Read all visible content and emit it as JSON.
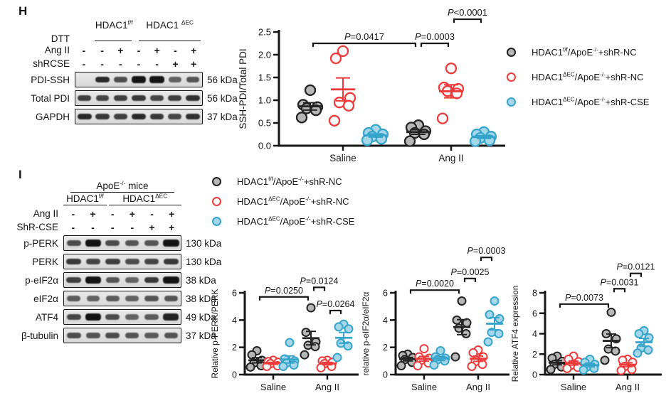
{
  "colors": {
    "black": {
      "stroke": "#232323",
      "fill": "#b7b7b7"
    },
    "red": {
      "stroke": "#ee3a3b",
      "fill": "#ffffff"
    },
    "blue": {
      "stroke": "#35a5cb",
      "fill": "#a5d7e9"
    }
  },
  "panel_h": {
    "label": "H",
    "blot": {
      "group_headers": [
        {
          "segments": [
            {
              "t": "HDAC1"
            },
            {
              "t": "f/f",
              "sup": true
            }
          ],
          "span": [
            1,
            3.3
          ]
        },
        {
          "segments": [
            {
              "t": "HDAC1 "
            },
            {
              "t": "ΔEC",
              "sup": true
            }
          ],
          "span": [
            3.4,
            7
          ]
        }
      ],
      "dtt": {
        "label": "DTT",
        "lines": [
          [
            1.1,
            3.1
          ],
          [
            3.5,
            6.9
          ]
        ]
      },
      "treatments": [
        {
          "label": "Ang II",
          "values": [
            "-",
            "-",
            "+",
            "-",
            "+",
            "-",
            "+"
          ]
        },
        {
          "label": "shRCSE",
          "values": [
            "-",
            "-",
            "-",
            "-",
            "-",
            "+",
            "+"
          ]
        }
      ],
      "bands": [
        {
          "label": "PDI-SSH",
          "kda": "56 kDa",
          "intensities": [
            0,
            0.85,
            0.6,
            1,
            1,
            0.45,
            0.55
          ]
        },
        {
          "label": "Total PDI",
          "kda": "56 kDa",
          "intensities": [
            0.7,
            0.65,
            0.7,
            0.75,
            0.65,
            0.7,
            0.8
          ]
        },
        {
          "label": "GAPDH",
          "kda": "37 kDa",
          "intensities": [
            0.85,
            0.75,
            0.7,
            0.85,
            0.75,
            0.65,
            0.8
          ]
        }
      ]
    },
    "legend": [
      {
        "color": "black",
        "segments": [
          {
            "t": "HDAC1"
          },
          {
            "t": "f/f",
            "sup": true
          },
          {
            "t": "/ApoE"
          },
          {
            "t": "-/-",
            "sup": true
          },
          {
            "t": "+shR-NC"
          }
        ]
      },
      {
        "color": "red",
        "segments": [
          {
            "t": "HDAC1"
          },
          {
            "t": "ΔEC",
            "sup": true
          },
          {
            "t": "/ApoE"
          },
          {
            "t": "-/-",
            "sup": true
          },
          {
            "t": "+shR-NC"
          }
        ]
      },
      {
        "color": "blue",
        "segments": [
          {
            "t": "HDAC1"
          },
          {
            "t": "ΔEC",
            "sup": true
          },
          {
            "t": "/ApoE"
          },
          {
            "t": "-/-",
            "sup": true
          },
          {
            "t": "+shR-CSE"
          }
        ]
      }
    ]
  },
  "panel_i": {
    "label": "I",
    "blot": {
      "top_header": {
        "segments": [
          {
            "t": "ApoE"
          },
          {
            "t": "-/-",
            "sup": true
          },
          {
            "t": " mice"
          }
        ],
        "span": [
          0.35,
          5.65
        ],
        "underline": true
      },
      "group_headers": [
        {
          "segments": [
            {
              "t": "HDAC1"
            },
            {
              "t": "f/f",
              "sup": true
            }
          ],
          "span": [
            0,
            2.2
          ],
          "underline": true
        },
        {
          "segments": [
            {
              "t": "HDAC1"
            },
            {
              "t": "ΔEC",
              "sup": true
            }
          ],
          "span": [
            2.3,
            6
          ],
          "underline": true
        }
      ],
      "treatments": [
        {
          "label": "Ang II",
          "values": [
            "-",
            "+",
            "-",
            "+",
            "-",
            "+"
          ]
        },
        {
          "label": "ShR-CSE",
          "values": [
            "-",
            "-",
            "-",
            "-",
            "+",
            "+"
          ]
        }
      ],
      "bands": [
        {
          "label": "p-PERK",
          "kda": "130 kDa",
          "intensities": [
            0.6,
            1,
            0.6,
            0.55,
            0.55,
            1
          ]
        },
        {
          "label": "PERK",
          "kda": "130 kDa",
          "intensities": [
            0.75,
            0.65,
            0.7,
            0.6,
            0.65,
            0.75
          ]
        },
        {
          "label": "p-eIF2α",
          "kda": "38 kDa",
          "intensities": [
            0.7,
            1,
            0.55,
            0.45,
            0.75,
            1
          ]
        },
        {
          "label": "eIF2α",
          "kda": "38 kDa",
          "intensities": [
            0.5,
            0.45,
            0.5,
            0.45,
            0.55,
            0.55
          ]
        },
        {
          "label": "ATF4",
          "kda": "49 kDa",
          "intensities": [
            0.65,
            1,
            0.6,
            0.45,
            0.5,
            0.9
          ]
        },
        {
          "label": "β-tubulin",
          "kda": "37 kDa",
          "intensities": [
            0.6,
            0.55,
            0.6,
            0.55,
            0.5,
            0.55
          ]
        }
      ]
    },
    "legend": [
      {
        "color": "black",
        "segments": [
          {
            "t": "HDAC1"
          },
          {
            "t": "f/f",
            "sup": true
          },
          {
            "t": "/ApoE"
          },
          {
            "t": "-/-",
            "sup": true
          },
          {
            "t": "+shR-NC"
          }
        ]
      },
      {
        "color": "red",
        "segments": [
          {
            "t": "HDAC1"
          },
          {
            "t": "ΔEC",
            "sup": true
          },
          {
            "t": "/ApoE"
          },
          {
            "t": "-/-",
            "sup": true
          },
          {
            "t": "+shR-NC"
          }
        ]
      },
      {
        "color": "blue",
        "segments": [
          {
            "t": "HDAC1"
          },
          {
            "t": "ΔEC",
            "sup": true
          },
          {
            "t": "/ApoE"
          },
          {
            "t": "-/-",
            "sup": true
          },
          {
            "t": "+shR-CSE"
          }
        ]
      }
    ]
  },
  "chart_data": [
    {
      "id": "h",
      "type": "scatter",
      "ylabel": "SSH-PDI/Total PDI",
      "ylim": [
        0,
        2.5
      ],
      "yticks": [
        0,
        0.5,
        1,
        1.5,
        2,
        2.5
      ],
      "ytick_labels": [
        "0.0",
        "0.5",
        "1.0",
        "1.5",
        "2.0",
        "2.5"
      ],
      "groups": [
        "Saline",
        "Ang II"
      ],
      "series_keys": [
        "black",
        "red",
        "blue"
      ],
      "points": {
        "Saline": {
          "black": [
            1.22,
            0.9,
            0.85,
            0.82,
            0.78,
            0.62
          ],
          "red": [
            2.08,
            1.92,
            1.05,
            0.95,
            0.88,
            0.55
          ],
          "blue": [
            0.35,
            0.28,
            0.25,
            0.2,
            0.15,
            0.12
          ]
        },
        "Ang II": {
          "black": [
            0.45,
            0.4,
            0.32,
            0.28,
            0.25,
            0.1
          ],
          "red": [
            1.7,
            1.28,
            1.25,
            1.2,
            1.15,
            0.6
          ],
          "blue": [
            0.3,
            0.25,
            0.2,
            0.17,
            0.12,
            0.1
          ]
        }
      },
      "brackets": [
        {
          "g1": 0,
          "s1": 0,
          "g2": 1,
          "s2": 0,
          "y": 2.25,
          "label": "P=0.0417"
        },
        {
          "g1": 1,
          "s1": 0,
          "g2": 1,
          "s2": 1,
          "y": 2.25,
          "label": "P=0.0003"
        },
        {
          "g1": 1,
          "s1": 1,
          "g2": 1,
          "s2": 2,
          "y": 2.78,
          "label": "P<0.0001"
        }
      ]
    },
    {
      "id": "i1",
      "type": "scatter",
      "ylabel": "Relative p-PERK/PERK",
      "ylim": [
        0,
        6
      ],
      "yticks": [
        0,
        2,
        4,
        6
      ],
      "ytick_labels": [
        "0",
        "2",
        "4",
        "6"
      ],
      "groups": [
        "Saline",
        "Ang II"
      ],
      "series_keys": [
        "black",
        "red",
        "blue"
      ],
      "points": {
        "Saline": {
          "black": [
            1.75,
            1.45,
            1.05,
            0.85,
            0.65,
            0.55
          ],
          "red": [
            1.05,
            0.95,
            0.9,
            0.8,
            0.65,
            0.6
          ],
          "blue": [
            2.35,
            1.15,
            1.0,
            0.85,
            0.7,
            0.6
          ]
        },
        "Ang II": {
          "black": [
            4.9,
            3.1,
            2.4,
            2.15,
            2.05,
            1.45
          ],
          "red": [
            1.05,
            1.0,
            0.9,
            0.8,
            0.6,
            0.5
          ],
          "blue": [
            3.7,
            3.5,
            3.35,
            2.3,
            2.1,
            1.25
          ]
        }
      },
      "brackets": [
        {
          "g1": 0,
          "s1": 0,
          "g2": 1,
          "s2": 0,
          "y": 5.7,
          "label": "P=0.0250"
        },
        {
          "g1": 1,
          "s1": 0,
          "g2": 1,
          "s2": 1,
          "y": 6.4,
          "label": "P=0.0124"
        },
        {
          "g1": 1,
          "s1": 1,
          "g2": 1,
          "s2": 2,
          "y": 4.7,
          "label": "P=0.0264"
        }
      ]
    },
    {
      "id": "i2",
      "type": "scatter",
      "ylabel": "relative p-eIF2α/eIF2α",
      "ylim": [
        0,
        6
      ],
      "yticks": [
        0,
        2,
        4,
        6
      ],
      "ytick_labels": [
        "0",
        "2",
        "4",
        "6"
      ],
      "groups": [
        "Saline",
        "Ang II"
      ],
      "series_keys": [
        "black",
        "red",
        "blue"
      ],
      "points": {
        "Saline": {
          "black": [
            1.5,
            1.4,
            1.25,
            1.1,
            0.9,
            0.65
          ],
          "red": [
            1.9,
            1.3,
            1.2,
            1.05,
            0.85,
            0.65
          ],
          "blue": [
            1.75,
            1.3,
            1.2,
            1.1,
            1.0,
            0.7
          ]
        },
        "Ang II": {
          "black": [
            5.4,
            4.0,
            3.8,
            3.4,
            3.0,
            1.3
          ],
          "red": [
            1.8,
            1.6,
            1.3,
            0.95,
            0.75,
            0.6
          ],
          "blue": [
            5.4,
            4.4,
            4.1,
            3.1,
            3.0,
            2.4
          ]
        }
      },
      "brackets": [
        {
          "g1": 0,
          "s1": 0,
          "g2": 1,
          "s2": 0,
          "y": 6.2,
          "label": "P=0.0020"
        },
        {
          "g1": 1,
          "s1": 0,
          "g2": 1,
          "s2": 1,
          "y": 7.05,
          "label": "P=0.0025"
        },
        {
          "g1": 1,
          "s1": 1,
          "g2": 1,
          "s2": 2,
          "y": 8.6,
          "label": "P=0.0003"
        }
      ]
    },
    {
      "id": "i3",
      "type": "scatter",
      "ylabel": "Relative ATF4 expression",
      "ylim": [
        0,
        8
      ],
      "yticks": [
        0,
        2,
        4,
        6,
        8
      ],
      "ytick_labels": [
        "0",
        "2",
        "4",
        "6",
        "8"
      ],
      "groups": [
        "Saline",
        "Ang II"
      ],
      "series_keys": [
        "black",
        "red",
        "blue"
      ],
      "points": {
        "Saline": {
          "black": [
            1.8,
            1.6,
            1.3,
            1.0,
            0.75,
            0.5
          ],
          "red": [
            1.8,
            1.5,
            1.25,
            0.9,
            0.7,
            0.6
          ],
          "blue": [
            1.5,
            1.2,
            1.0,
            0.75,
            0.6,
            0.45
          ]
        },
        "Ang II": {
          "black": [
            6.1,
            4.0,
            3.5,
            2.5,
            2.3,
            1.4
          ],
          "red": [
            1.5,
            1.4,
            1.2,
            0.8,
            0.5,
            0.4
          ],
          "blue": [
            4.3,
            4.0,
            3.6,
            2.6,
            2.4,
            2.1
          ]
        }
      },
      "brackets": [
        {
          "g1": 0,
          "s1": 0,
          "g2": 1,
          "s2": 0,
          "y": 6.9,
          "label": "P=0.0073"
        },
        {
          "g1": 1,
          "s1": 0,
          "g2": 1,
          "s2": 1,
          "y": 8.4,
          "label": "P=0.0031"
        },
        {
          "g1": 1,
          "s1": 1,
          "g2": 1,
          "s2": 2,
          "y": 9.9,
          "label": "P=0.0121"
        }
      ]
    }
  ]
}
